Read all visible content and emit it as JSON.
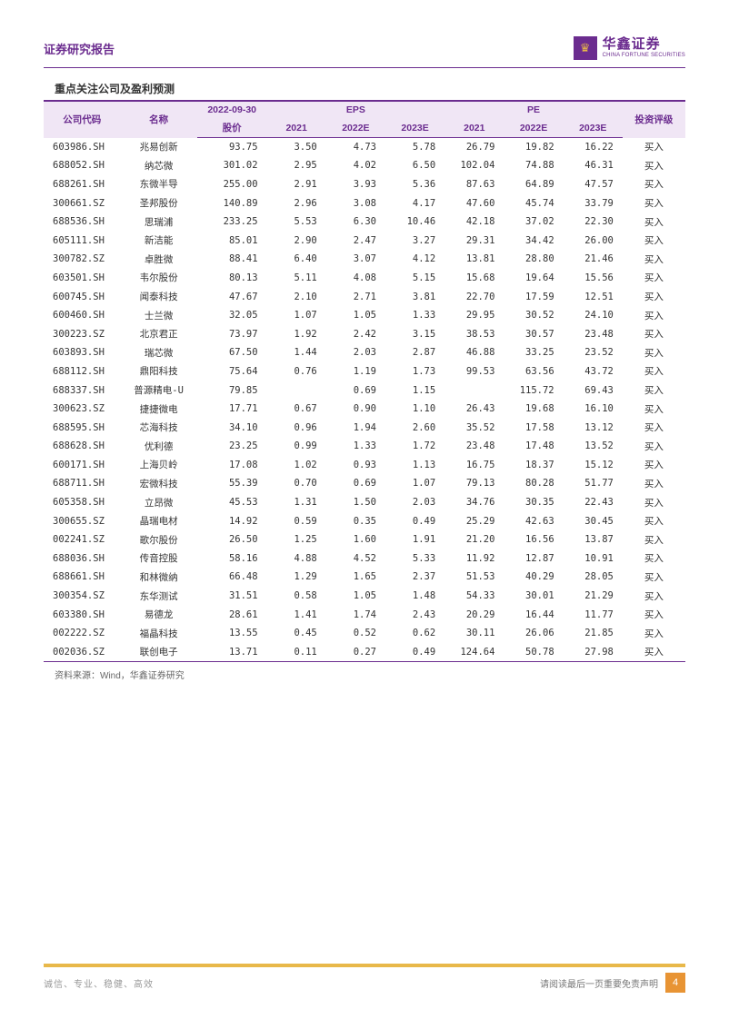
{
  "header": {
    "title": "证券研究报告",
    "logo_cn": "华鑫证券",
    "logo_en": "CHINA FORTUNE SECURITIES",
    "logo_glyph": "♛"
  },
  "table": {
    "title": "重点关注公司及盈利预测",
    "group_headers": {
      "code": "公司代码",
      "name": "名称",
      "price_date": "2022-09-30",
      "price_label": "股价",
      "eps": "EPS",
      "pe": "PE",
      "rating": "投资评级"
    },
    "sub_headers": {
      "eps_2021": "2021",
      "eps_2022e": "2022E",
      "eps_2023e": "2023E",
      "pe_2021": "2021",
      "pe_2022e": "2022E",
      "pe_2023e": "2023E"
    },
    "rows": [
      {
        "code": "603986.SH",
        "name": "兆易创新",
        "price": "93.75",
        "e21": "3.50",
        "e22": "4.73",
        "e23": "5.78",
        "p21": "26.79",
        "p22": "19.82",
        "p23": "16.22",
        "rating": "买入"
      },
      {
        "code": "688052.SH",
        "name": "纳芯微",
        "price": "301.02",
        "e21": "2.95",
        "e22": "4.02",
        "e23": "6.50",
        "p21": "102.04",
        "p22": "74.88",
        "p23": "46.31",
        "rating": "买入"
      },
      {
        "code": "688261.SH",
        "name": "东微半导",
        "price": "255.00",
        "e21": "2.91",
        "e22": "3.93",
        "e23": "5.36",
        "p21": "87.63",
        "p22": "64.89",
        "p23": "47.57",
        "rating": "买入"
      },
      {
        "code": "300661.SZ",
        "name": "圣邦股份",
        "price": "140.89",
        "e21": "2.96",
        "e22": "3.08",
        "e23": "4.17",
        "p21": "47.60",
        "p22": "45.74",
        "p23": "33.79",
        "rating": "买入"
      },
      {
        "code": "688536.SH",
        "name": "思瑞浦",
        "price": "233.25",
        "e21": "5.53",
        "e22": "6.30",
        "e23": "10.46",
        "p21": "42.18",
        "p22": "37.02",
        "p23": "22.30",
        "rating": "买入"
      },
      {
        "code": "605111.SH",
        "name": "新洁能",
        "price": "85.01",
        "e21": "2.90",
        "e22": "2.47",
        "e23": "3.27",
        "p21": "29.31",
        "p22": "34.42",
        "p23": "26.00",
        "rating": "买入"
      },
      {
        "code": "300782.SZ",
        "name": "卓胜微",
        "price": "88.41",
        "e21": "6.40",
        "e22": "3.07",
        "e23": "4.12",
        "p21": "13.81",
        "p22": "28.80",
        "p23": "21.46",
        "rating": "买入"
      },
      {
        "code": "603501.SH",
        "name": "韦尔股份",
        "price": "80.13",
        "e21": "5.11",
        "e22": "4.08",
        "e23": "5.15",
        "p21": "15.68",
        "p22": "19.64",
        "p23": "15.56",
        "rating": "买入"
      },
      {
        "code": "600745.SH",
        "name": "闻泰科技",
        "price": "47.67",
        "e21": "2.10",
        "e22": "2.71",
        "e23": "3.81",
        "p21": "22.70",
        "p22": "17.59",
        "p23": "12.51",
        "rating": "买入"
      },
      {
        "code": "600460.SH",
        "name": "士兰微",
        "price": "32.05",
        "e21": "1.07",
        "e22": "1.05",
        "e23": "1.33",
        "p21": "29.95",
        "p22": "30.52",
        "p23": "24.10",
        "rating": "买入"
      },
      {
        "code": "300223.SZ",
        "name": "北京君正",
        "price": "73.97",
        "e21": "1.92",
        "e22": "2.42",
        "e23": "3.15",
        "p21": "38.53",
        "p22": "30.57",
        "p23": "23.48",
        "rating": "买入"
      },
      {
        "code": "603893.SH",
        "name": "瑞芯微",
        "price": "67.50",
        "e21": "1.44",
        "e22": "2.03",
        "e23": "2.87",
        "p21": "46.88",
        "p22": "33.25",
        "p23": "23.52",
        "rating": "买入"
      },
      {
        "code": "688112.SH",
        "name": "鼎阳科技",
        "price": "75.64",
        "e21": "0.76",
        "e22": "1.19",
        "e23": "1.73",
        "p21": "99.53",
        "p22": "63.56",
        "p23": "43.72",
        "rating": "买入"
      },
      {
        "code": "688337.SH",
        "name": "普源精电-U",
        "price": "79.85",
        "e21": "",
        "e22": "0.69",
        "e23": "1.15",
        "p21": "",
        "p22": "115.72",
        "p23": "69.43",
        "rating": "买入"
      },
      {
        "code": "300623.SZ",
        "name": "捷捷微电",
        "price": "17.71",
        "e21": "0.67",
        "e22": "0.90",
        "e23": "1.10",
        "p21": "26.43",
        "p22": "19.68",
        "p23": "16.10",
        "rating": "买入"
      },
      {
        "code": "688595.SH",
        "name": "芯海科技",
        "price": "34.10",
        "e21": "0.96",
        "e22": "1.94",
        "e23": "2.60",
        "p21": "35.52",
        "p22": "17.58",
        "p23": "13.12",
        "rating": "买入"
      },
      {
        "code": "688628.SH",
        "name": "优利德",
        "price": "23.25",
        "e21": "0.99",
        "e22": "1.33",
        "e23": "1.72",
        "p21": "23.48",
        "p22": "17.48",
        "p23": "13.52",
        "rating": "买入"
      },
      {
        "code": "600171.SH",
        "name": "上海贝岭",
        "price": "17.08",
        "e21": "1.02",
        "e22": "0.93",
        "e23": "1.13",
        "p21": "16.75",
        "p22": "18.37",
        "p23": "15.12",
        "rating": "买入"
      },
      {
        "code": "688711.SH",
        "name": "宏微科技",
        "price": "55.39",
        "e21": "0.70",
        "e22": "0.69",
        "e23": "1.07",
        "p21": "79.13",
        "p22": "80.28",
        "p23": "51.77",
        "rating": "买入"
      },
      {
        "code": "605358.SH",
        "name": "立昂微",
        "price": "45.53",
        "e21": "1.31",
        "e22": "1.50",
        "e23": "2.03",
        "p21": "34.76",
        "p22": "30.35",
        "p23": "22.43",
        "rating": "买入"
      },
      {
        "code": "300655.SZ",
        "name": "晶瑞电材",
        "price": "14.92",
        "e21": "0.59",
        "e22": "0.35",
        "e23": "0.49",
        "p21": "25.29",
        "p22": "42.63",
        "p23": "30.45",
        "rating": "买入"
      },
      {
        "code": "002241.SZ",
        "name": "歌尔股份",
        "price": "26.50",
        "e21": "1.25",
        "e22": "1.60",
        "e23": "1.91",
        "p21": "21.20",
        "p22": "16.56",
        "p23": "13.87",
        "rating": "买入"
      },
      {
        "code": "688036.SH",
        "name": "传音控股",
        "price": "58.16",
        "e21": "4.88",
        "e22": "4.52",
        "e23": "5.33",
        "p21": "11.92",
        "p22": "12.87",
        "p23": "10.91",
        "rating": "买入"
      },
      {
        "code": "688661.SH",
        "name": "和林微纳",
        "price": "66.48",
        "e21": "1.29",
        "e22": "1.65",
        "e23": "2.37",
        "p21": "51.53",
        "p22": "40.29",
        "p23": "28.05",
        "rating": "买入"
      },
      {
        "code": "300354.SZ",
        "name": "东华测试",
        "price": "31.51",
        "e21": "0.58",
        "e22": "1.05",
        "e23": "1.48",
        "p21": "54.33",
        "p22": "30.01",
        "p23": "21.29",
        "rating": "买入"
      },
      {
        "code": "603380.SH",
        "name": "易德龙",
        "price": "28.61",
        "e21": "1.41",
        "e22": "1.74",
        "e23": "2.43",
        "p21": "20.29",
        "p22": "16.44",
        "p23": "11.77",
        "rating": "买入"
      },
      {
        "code": "002222.SZ",
        "name": "福晶科技",
        "price": "13.55",
        "e21": "0.45",
        "e22": "0.52",
        "e23": "0.62",
        "p21": "30.11",
        "p22": "26.06",
        "p23": "21.85",
        "rating": "买入"
      },
      {
        "code": "002036.SZ",
        "name": "联创电子",
        "price": "13.71",
        "e21": "0.11",
        "e22": "0.27",
        "e23": "0.49",
        "p21": "124.64",
        "p22": "50.78",
        "p23": "27.98",
        "rating": "买入"
      }
    ],
    "source": "资料来源：Wind，华鑫证券研究"
  },
  "footer": {
    "left": "诚信、专业、稳健、高效",
    "disclaimer": "请阅读最后一页重要免责声明",
    "page": "4"
  },
  "styling": {
    "accent_color": "#6b2c8f",
    "header_bg": "#f0e6f5",
    "footer_bar_color": "#e8b84a",
    "page_num_bg": "#e89434",
    "body_width": 802,
    "body_height": 1133,
    "table_fontsize": 10.5,
    "title_fontsize": 12
  }
}
